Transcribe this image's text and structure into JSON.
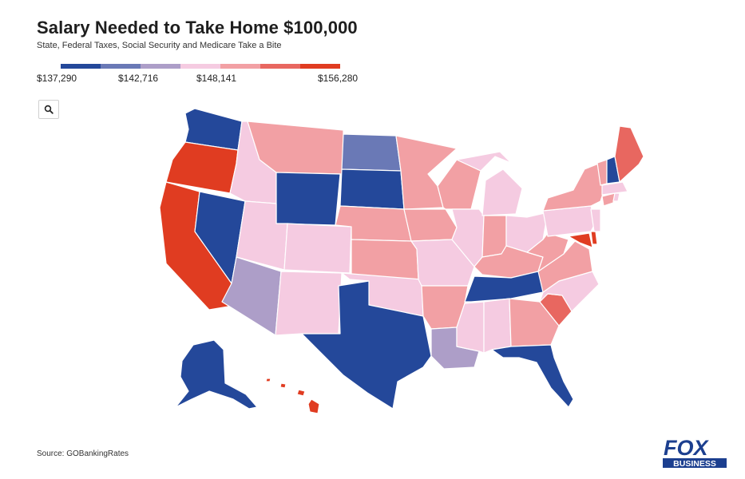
{
  "header": {
    "title": "Salary Needed to Take Home $100,000",
    "subtitle": "State, Federal Taxes, Social Security and Medicare Take a Bite"
  },
  "legend": {
    "colors": [
      "#24489a",
      "#6a79b6",
      "#ad9ec8",
      "#f5cbe1",
      "#f2a0a4",
      "#e86760",
      "#e03c21"
    ],
    "labels": [
      "$137,290",
      "$142,716",
      "$148,141",
      "$156,280"
    ]
  },
  "zoom": {
    "icon": "search-icon"
  },
  "source": "Source: GOBankingRates",
  "logo": {
    "line1": "FOX",
    "line2": "BUSINESS"
  }
}
